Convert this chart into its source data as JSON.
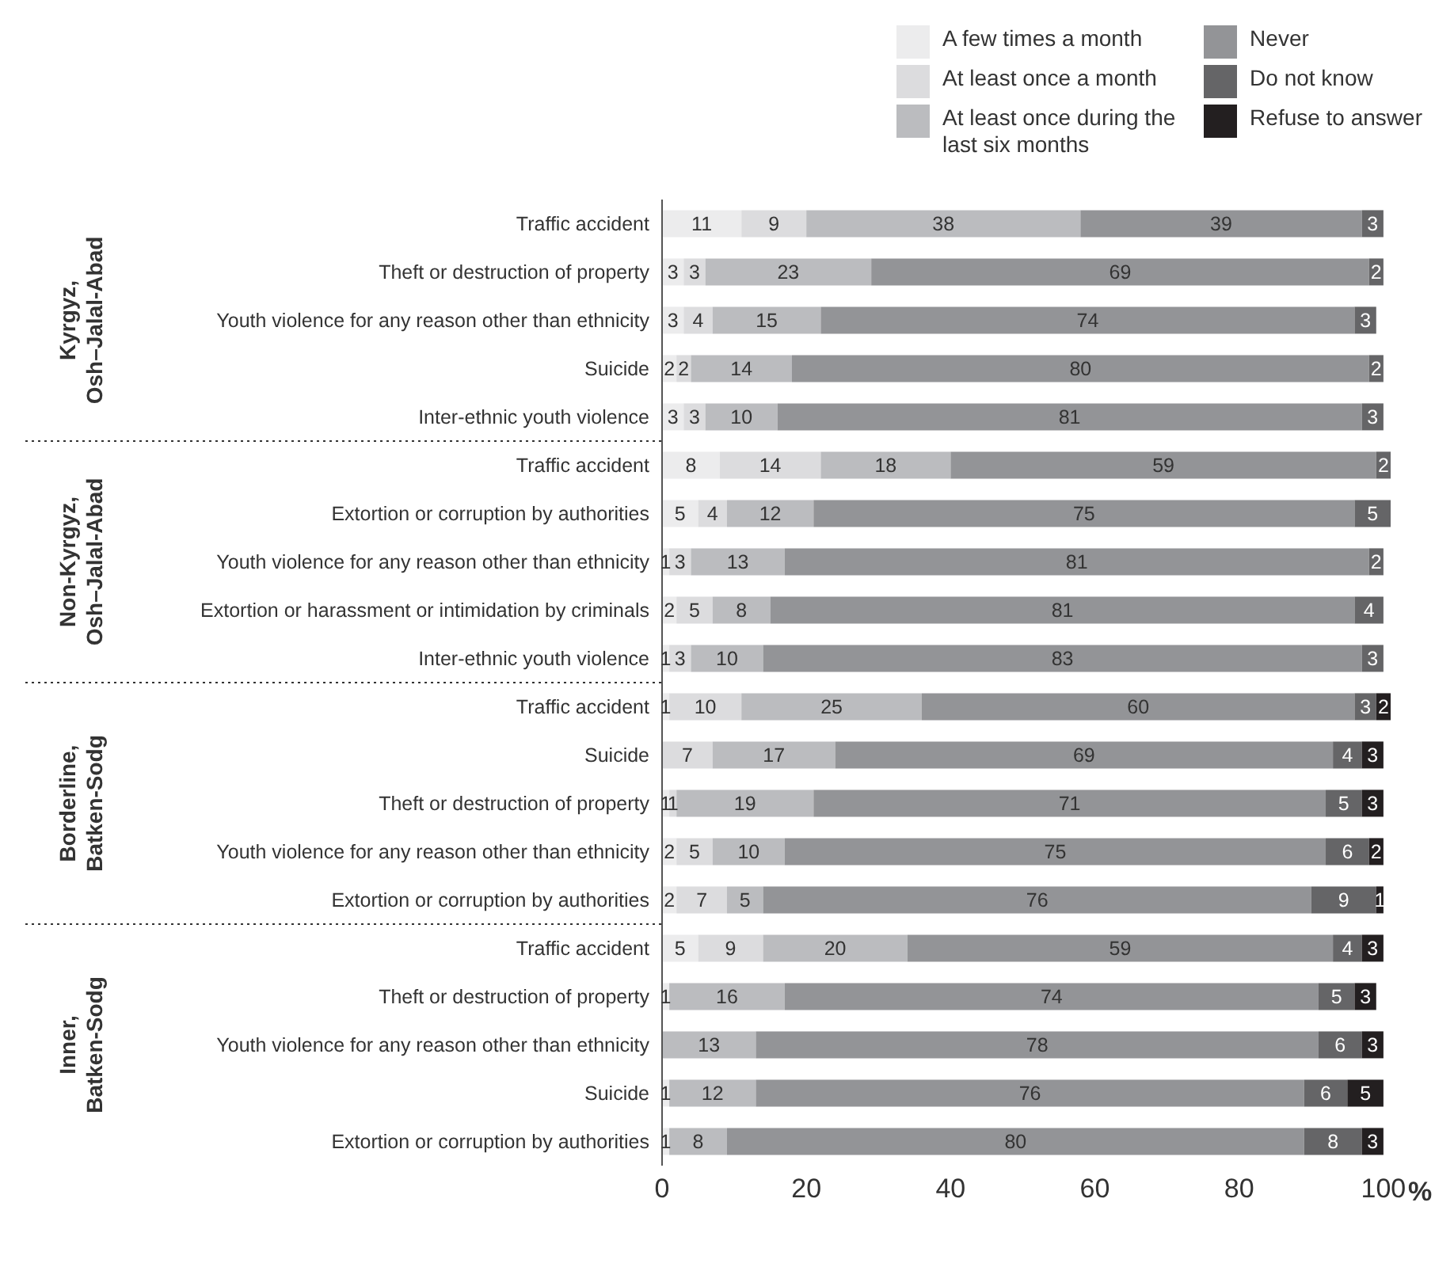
{
  "chart_data": {
    "type": "bar",
    "orientation": "horizontal",
    "stacked": true,
    "data_labels": true,
    "legend": "top right",
    "xlabel": "%",
    "xlim": [
      0,
      101
    ],
    "xticks": [
      0,
      20,
      40,
      60,
      80,
      100
    ],
    "categories": [
      "Traffic accident",
      "Theft or destruction of property",
      "Youth violence for any reason other than ethnicity",
      "Suicide",
      "Inter-ethnic youth violence",
      "Traffic accident",
      "Extortion or corruption by authorities",
      "Youth violence for any reason other than ethnicity",
      "Extortion or harassment or intimidation by criminals",
      "Inter-ethnic youth violence",
      "Traffic accident",
      "Suicide",
      "Theft or destruction of property",
      "Youth violence for any reason other than ethnicity",
      "Extortion or corruption by authorities",
      "Traffic accident",
      "Theft or destruction of property",
      "Youth violence for any reason other than ethnicity",
      "Suicide",
      "Extortion or corruption by authorities"
    ],
    "annotations": [
      "Kyrgyz,\nOsh–Jalal-Abad",
      "Non-Kyrgyz,\nOsh–Jalal-Abad",
      "Borderline,\nBatken-Sodg",
      "Inner,\nBatken-Sodg"
    ],
    "series": [
      {
        "name": "A few times a month",
        "color": "#ececed",
        "values": [
          11,
          3,
          3,
          2,
          3,
          8,
          5,
          1,
          2,
          1,
          1,
          null,
          1,
          2,
          2,
          5,
          1,
          null,
          1,
          1
        ]
      },
      {
        "name": "At least once a month",
        "color": "#dcdcde",
        "values": [
          9,
          3,
          4,
          2,
          3,
          14,
          4,
          3,
          5,
          3,
          10,
          7,
          1,
          5,
          7,
          9,
          null,
          null,
          null,
          null
        ]
      },
      {
        "name": "At least once during the last six months",
        "color": "#bbbcbf",
        "values": [
          38,
          23,
          15,
          14,
          10,
          18,
          12,
          13,
          8,
          10,
          25,
          17,
          19,
          10,
          5,
          20,
          16,
          13,
          12,
          8
        ]
      },
      {
        "name": "Never",
        "color": "#939497",
        "values": [
          39,
          69,
          74,
          80,
          81,
          59,
          75,
          81,
          81,
          83,
          60,
          69,
          71,
          75,
          76,
          59,
          74,
          78,
          76,
          80
        ]
      },
      {
        "name": "Do not know",
        "color": "#656567",
        "values": [
          3,
          2,
          3,
          2,
          3,
          2,
          5,
          2,
          4,
          3,
          3,
          4,
          5,
          6,
          9,
          4,
          5,
          6,
          6,
          8
        ]
      },
      {
        "name": "Refuse to answer",
        "color": "#231f20",
        "values": [
          null,
          null,
          null,
          null,
          null,
          null,
          null,
          null,
          null,
          null,
          2,
          3,
          3,
          2,
          1,
          3,
          3,
          3,
          5,
          3
        ]
      }
    ]
  }
}
